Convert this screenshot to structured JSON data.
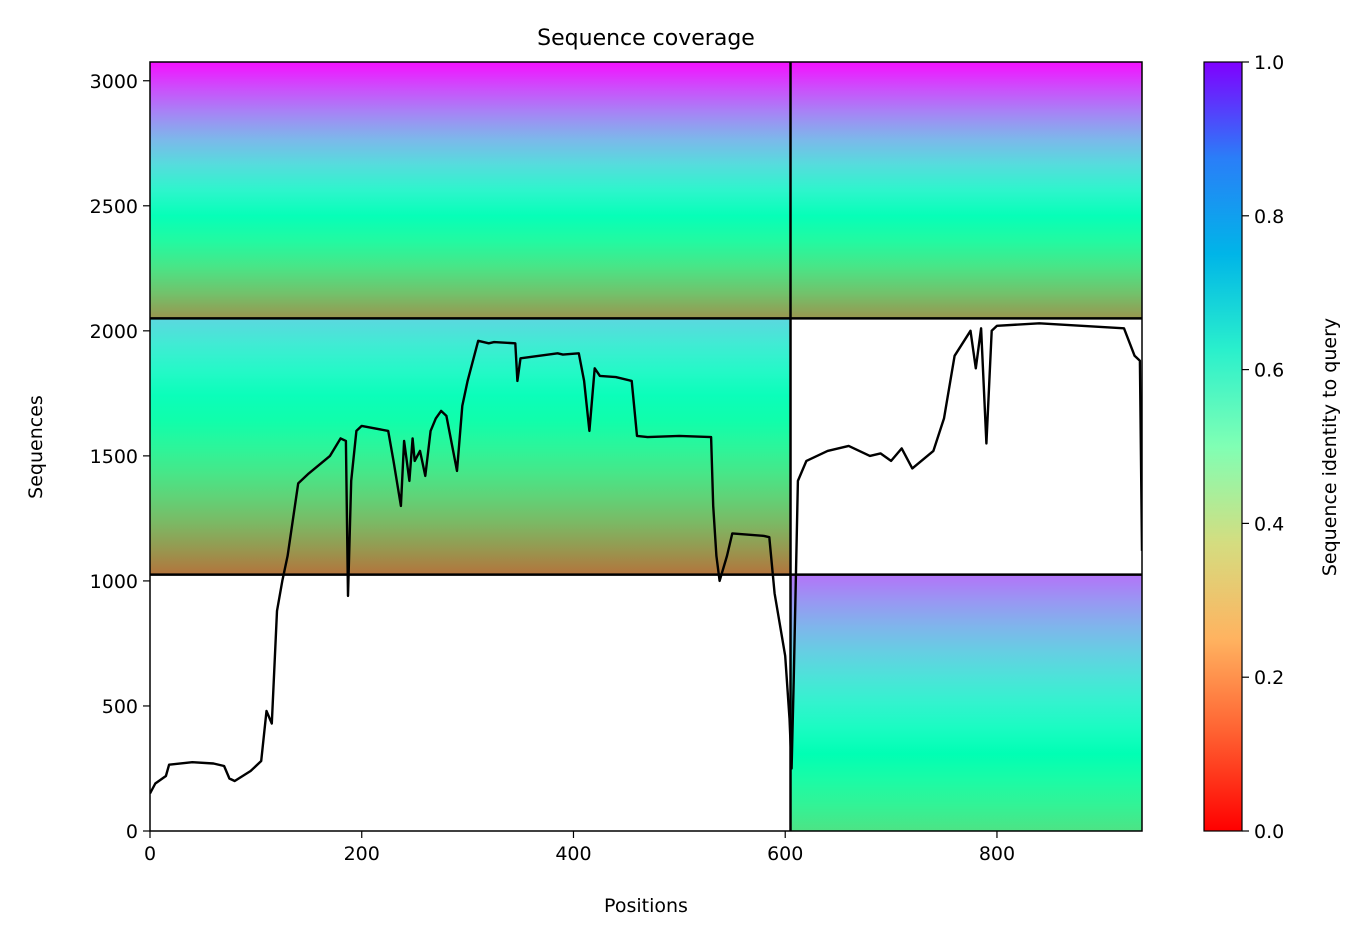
{
  "chart_data": {
    "type": "heatmap",
    "title": "Sequence coverage",
    "xlabel": "Positions",
    "ylabel": "Sequences",
    "xlim": [
      0,
      937
    ],
    "ylim": [
      0,
      3075
    ],
    "xticks": [
      0,
      200,
      400,
      600,
      800
    ],
    "yticks": [
      0,
      500,
      1000,
      1500,
      2000,
      2500,
      3000
    ],
    "colorbar": {
      "label": "Sequence identity to query",
      "range": [
        0,
        1
      ],
      "ticks": [
        "0.0",
        "0.2",
        "0.4",
        "0.6",
        "0.8",
        "1.0"
      ],
      "colormap": "rainbow_r"
    },
    "colors": {
      "line": "#000000",
      "divider": "#000000"
    },
    "domain_boundaries": {
      "x": [
        605
      ],
      "y": [
        1025,
        2050
      ]
    },
    "msa_blocks": [
      {
        "x_range": [
          0,
          605
        ],
        "y_range": [
          2050,
          3075
        ],
        "identity_top": 0.98,
        "identity_bottom": 0.2
      },
      {
        "x_range": [
          605,
          937
        ],
        "y_range": [
          2050,
          3075
        ],
        "identity_top": 0.98,
        "identity_bottom": 0.2
      },
      {
        "x_range": [
          0,
          605
        ],
        "y_range": [
          1025,
          2050
        ],
        "identity_top": 0.68,
        "identity_bottom": 0.15
      },
      {
        "x_range": [
          605,
          937
        ],
        "y_range": [
          0,
          1025
        ],
        "identity_top": 0.85,
        "identity_bottom": 0.35
      }
    ],
    "series": [
      {
        "type": "line",
        "x": [
          0,
          5,
          15,
          18,
          40,
          60,
          70,
          75,
          80,
          95,
          105,
          110,
          115,
          120,
          125,
          130,
          140,
          150,
          170,
          180,
          185,
          187,
          190,
          195,
          200,
          225,
          230,
          237,
          240,
          245,
          248,
          250,
          255,
          260,
          265,
          270,
          275,
          280,
          290,
          295,
          300,
          310,
          320,
          325,
          345,
          347,
          350,
          385,
          390,
          405,
          410,
          415,
          420,
          425,
          440,
          455,
          460,
          470,
          500,
          530,
          532,
          535,
          538,
          545,
          550,
          580,
          585,
          590,
          600,
          604,
          606,
          608,
          612,
          620,
          630,
          640,
          660,
          680,
          690,
          700,
          710,
          720,
          740,
          750,
          760,
          775,
          780,
          785,
          790,
          795,
          800,
          840,
          880,
          920,
          930,
          935,
          937
        ],
        "y": [
          150,
          190,
          220,
          265,
          275,
          270,
          260,
          210,
          200,
          240,
          280,
          480,
          430,
          880,
          1000,
          1100,
          1390,
          1430,
          1500,
          1570,
          1560,
          940,
          1400,
          1600,
          1620,
          1600,
          1480,
          1300,
          1560,
          1400,
          1570,
          1480,
          1520,
          1420,
          1600,
          1650,
          1680,
          1660,
          1440,
          1700,
          1800,
          1960,
          1950,
          1955,
          1950,
          1800,
          1890,
          1910,
          1905,
          1910,
          1800,
          1600,
          1850,
          1820,
          1815,
          1800,
          1580,
          1575,
          1580,
          1575,
          1300,
          1100,
          1000,
          1100,
          1190,
          1180,
          1175,
          950,
          700,
          450,
          250,
          600,
          1400,
          1480,
          1500,
          1520,
          1540,
          1500,
          1510,
          1480,
          1530,
          1450,
          1520,
          1650,
          1900,
          2000,
          1850,
          2010,
          1550,
          2000,
          2020,
          2030,
          2020,
          2010,
          1900,
          1880,
          1120
        ],
        "color": "#000000"
      }
    ]
  }
}
